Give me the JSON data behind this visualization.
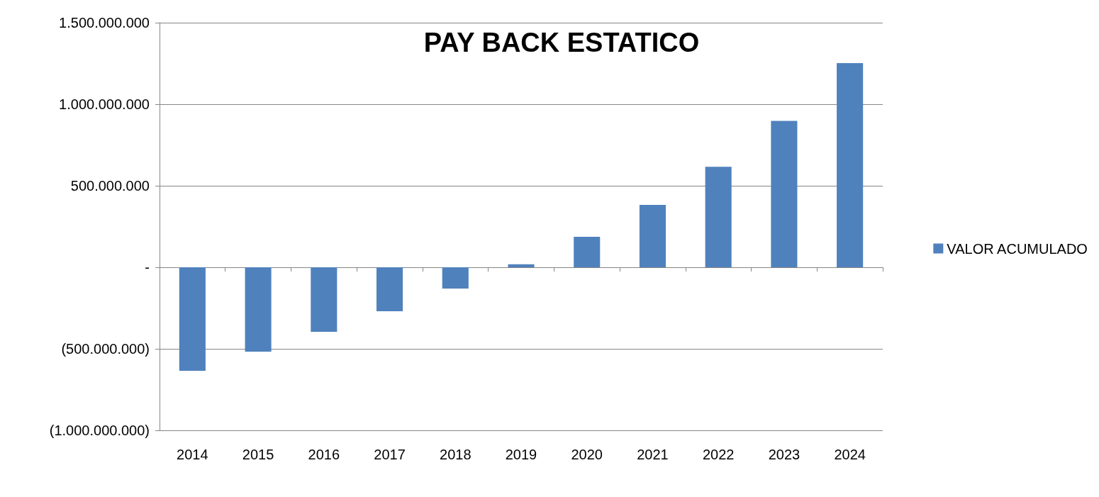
{
  "chart_data": {
    "type": "bar",
    "title": "PAY BACK ESTATICO",
    "categories": [
      "2014",
      "2015",
      "2016",
      "2017",
      "2018",
      "2019",
      "2020",
      "2021",
      "2022",
      "2023",
      "2024"
    ],
    "series": [
      {
        "name": "VALOR ACUMULADO",
        "color": "#4f81bd",
        "values": [
          -635000000,
          -517000000,
          -396000000,
          -270000000,
          -130000000,
          19000000,
          187000000,
          383000000,
          616000000,
          898000000,
          1252000000
        ]
      }
    ],
    "ylim": [
      -1000000000,
      1500000000
    ],
    "yticks": [
      {
        "value": -1000000000,
        "label": "(1.000.000.000)"
      },
      {
        "value": -500000000,
        "label": "(500.000.000)"
      },
      {
        "value": 0,
        "label": "-"
      },
      {
        "value": 500000000,
        "label": "500.000.000"
      },
      {
        "value": 1000000000,
        "label": "1.000.000.000"
      },
      {
        "value": 1500000000,
        "label": "1.500.000.000"
      }
    ],
    "grid": "y",
    "legend": "right"
  }
}
